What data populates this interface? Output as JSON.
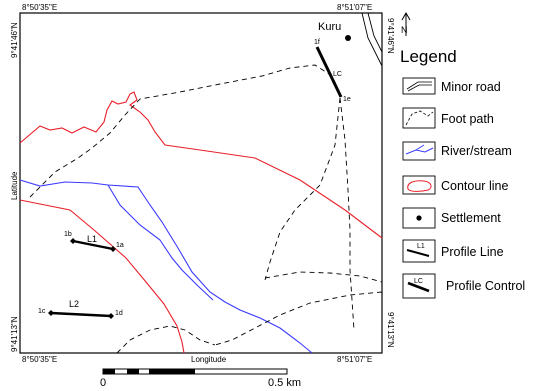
{
  "map": {
    "top_left_lon": "8°50'35\"E",
    "top_right_lon": "8°51'07\"E",
    "bottom_left_lon": "8°50'35\"E",
    "bottom_right_lon": "8°51'07\"E",
    "left_top_lat": "9°41'46\"N",
    "right_top_lat": "9°41'46\"N",
    "left_bottom_lat": "9°41'13\"N",
    "right_bottom_lat": "9°41'13\"N",
    "axis_y": "Latitude",
    "axis_x": "Longitude",
    "settlement": "Kuru",
    "profiles": {
      "l1": "L1",
      "l1_start": "1b",
      "l1_end": "1a",
      "l2": "L2",
      "l2_start": "1c",
      "l2_end": "1d",
      "lc": "LC",
      "lc_start": "1f",
      "lc_end": "1e"
    },
    "north_letter": "N"
  },
  "legend": {
    "title": "Legend",
    "items": [
      {
        "label": "Minor road",
        "symbol": "road-icon"
      },
      {
        "label": "Foot path",
        "symbol": "footpath-icon"
      },
      {
        "label": "River/stream",
        "symbol": "river-icon"
      },
      {
        "label": "Contour line",
        "symbol": "contour-icon"
      },
      {
        "label": "Settlement",
        "symbol": "settlement-icon"
      },
      {
        "label": "Profile Line",
        "symbol": "profile-line-icon",
        "swatch_text": "L1"
      },
      {
        "label": "Profile Control",
        "symbol": "profile-control-icon",
        "swatch_text": "LC"
      }
    ]
  },
  "scale_bar": {
    "start_label": "0",
    "end_label": "0.5 km"
  },
  "colors": {
    "river": "#3a3aff",
    "contour": "#e8202a",
    "path": "#000000",
    "frame": "#000000"
  }
}
